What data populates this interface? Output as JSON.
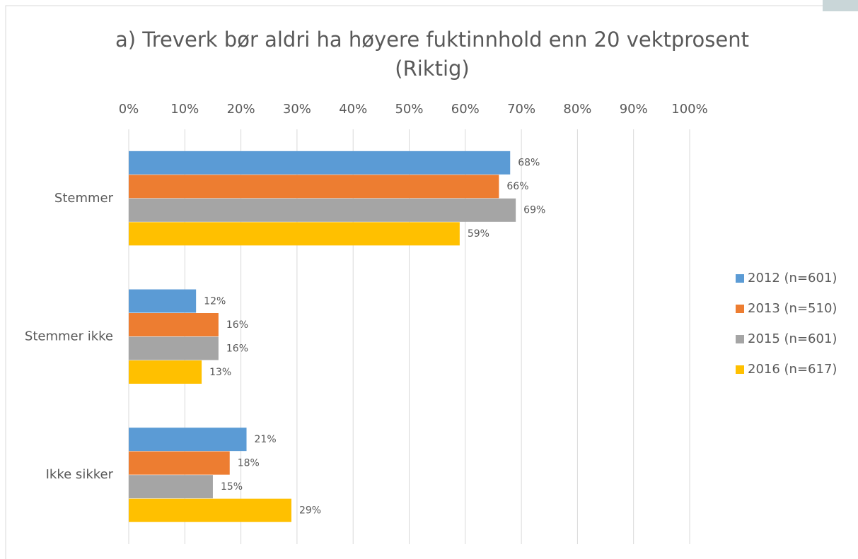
{
  "chart_data": {
    "type": "bar",
    "orientation": "horizontal",
    "title": "a) Treverk bør aldri ha høyere fuktinnhold enn 20 vektprosent",
    "subtitle": "(Riktig)",
    "categories": [
      "Stemmer",
      "Stemmer ikke",
      "Ikke sikker"
    ],
    "series": [
      {
        "name": "2012 (n=601)",
        "color": "#5b9bd5",
        "values": [
          68,
          12,
          21
        ],
        "value_labels": [
          "68%",
          "12%",
          "21%"
        ]
      },
      {
        "name": "2013 (n=510)",
        "color": "#ed7d31",
        "values": [
          66,
          16,
          18
        ],
        "value_labels": [
          "66%",
          "16%",
          "18%"
        ]
      },
      {
        "name": "2015 (n=601)",
        "color": "#a5a5a5",
        "values": [
          69,
          16,
          15
        ],
        "value_labels": [
          "69%",
          "16%",
          "15%"
        ]
      },
      {
        "name": "2016 (n=617)",
        "color": "#ffc000",
        "values": [
          59,
          13,
          29
        ],
        "value_labels": [
          "59%",
          "13%",
          "29%"
        ]
      }
    ],
    "xlim": [
      0,
      100
    ],
    "xticks": [
      {
        "value": 0,
        "label": "0%"
      },
      {
        "value": 10,
        "label": "10%"
      },
      {
        "value": 20,
        "label": "20%"
      },
      {
        "value": 30,
        "label": "30%"
      },
      {
        "value": 40,
        "label": "40%"
      },
      {
        "value": 50,
        "label": "50%"
      },
      {
        "value": 60,
        "label": "60%"
      },
      {
        "value": 70,
        "label": "70%"
      },
      {
        "value": 80,
        "label": "80%"
      },
      {
        "value": 90,
        "label": "90%"
      },
      {
        "value": 100,
        "label": "100%"
      }
    ],
    "grid": true,
    "legend": "right"
  }
}
